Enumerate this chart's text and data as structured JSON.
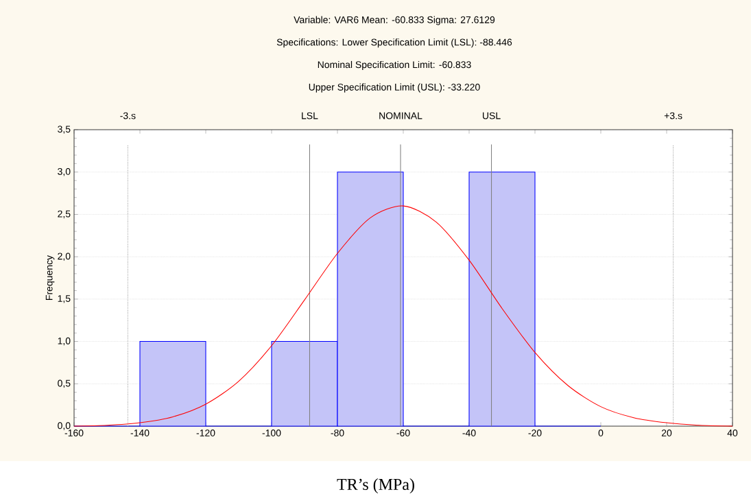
{
  "chart_data": {
    "type": "histogram",
    "title": "Variable: VAR6 Mean: -60.833 Sigma: 27.6129",
    "subtitle": "Specifications: Lower Specification Limit (LSL): -88.446",
    "annotations": [
      "Nominal Specification Limit: -60.833",
      "Upper Specification Limit (USL): -33.220"
    ],
    "xlabel": "TR’s (MPa)",
    "ylabel": "Frequency",
    "bins": [
      -160,
      -140,
      -120,
      -100,
      -80,
      -60,
      -40,
      -20,
      0
    ],
    "values": [
      0,
      1,
      0,
      1,
      3,
      0,
      3,
      0
    ],
    "color": "#c4c4f8",
    "series": [
      {
        "type": "line",
        "color": "#ff0000",
        "x": [
          -160,
          -150,
          -140,
          -130,
          -120,
          -110,
          -100,
          -90,
          -80,
          -70,
          -60,
          -50,
          -40,
          -30,
          -20,
          -10,
          0,
          10,
          20,
          30,
          40
        ],
        "values": [
          0.0,
          0.01,
          0.04,
          0.11,
          0.26,
          0.53,
          0.95,
          1.49,
          2.04,
          2.46,
          2.6,
          2.41,
          1.96,
          1.39,
          0.87,
          0.48,
          0.23,
          0.1,
          0.04,
          0.01,
          0.0
        ]
      }
    ],
    "ref_lines": [
      {
        "axis": "x",
        "value": -143.67,
        "label": "-3.s",
        "line_style": "dotted",
        "color": "#a0a0a0"
      },
      {
        "axis": "x",
        "value": -88.446,
        "label": "LSL",
        "line_style": "solid",
        "color": "#808080"
      },
      {
        "axis": "x",
        "value": -60.833,
        "label": "NOMINAL",
        "line_style": "solid",
        "color": "#808080"
      },
      {
        "axis": "x",
        "value": -33.22,
        "label": "USL",
        "line_style": "solid",
        "color": "#808080"
      },
      {
        "axis": "x",
        "value": 22.0,
        "label": "+3.s",
        "line_style": "dotted",
        "color": "#a0a0a0"
      }
    ],
    "xlim": [
      -160,
      40
    ],
    "ylim": [
      0,
      3.5
    ],
    "xticks": [
      -160,
      -140,
      -120,
      -100,
      -80,
      -60,
      -40,
      -20,
      0,
      20,
      40
    ],
    "yticks": [
      {
        "value": 0,
        "label": "0,0"
      },
      {
        "value": 0.5,
        "label": "0,5"
      },
      {
        "value": 1,
        "label": "1,0"
      },
      {
        "value": 1.5,
        "label": "1,5"
      },
      {
        "value": 2,
        "label": "2,0"
      },
      {
        "value": 2.5,
        "label": "2,5"
      },
      {
        "value": 3,
        "label": "3,0"
      },
      {
        "value": 3.5,
        "label": "3,5"
      }
    ],
    "grid": "y"
  }
}
